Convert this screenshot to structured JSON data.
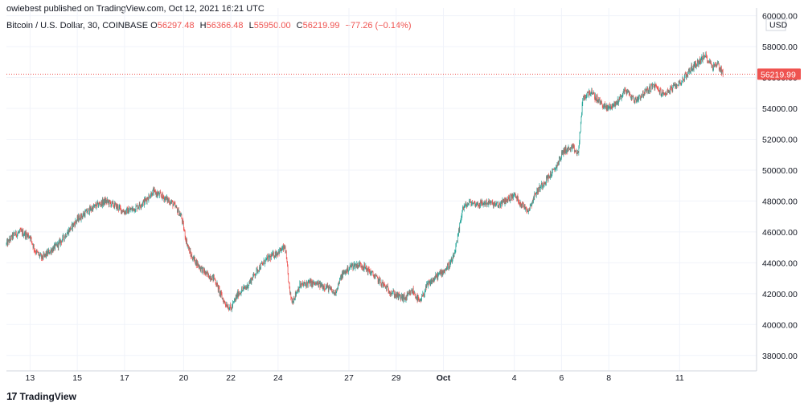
{
  "header": {
    "published": "owiebest published on TradingView.com, Oct 12, 2021 16:21 UTC"
  },
  "symbol": {
    "name": "Bitcoin / U.S. Dollar, 30, COINBASE",
    "open_label": "O",
    "open": "56297.48",
    "high_label": "H",
    "high": "56366.48",
    "low_label": "L",
    "low": "55950.00",
    "close_label": "C",
    "close": "56219.99",
    "change": "−77.26 (−0.14%)"
  },
  "brand": {
    "label": "TradingView",
    "icon": "tradingview-logo-icon"
  },
  "colors": {
    "up": "#26a69a",
    "down": "#ef5350",
    "grid": "#f0f3fa",
    "axis": "#d1d4dc"
  },
  "chart_data": {
    "type": "candlestick",
    "title": "Bitcoin / U.S. Dollar, 30, COINBASE",
    "currency": "USD",
    "last_price": "56219.99",
    "ylim": [
      37000,
      60500
    ],
    "y_ticks": [
      {
        "value": 38000,
        "label": "38000.00"
      },
      {
        "value": 40000,
        "label": "40000.00"
      },
      {
        "value": 42000,
        "label": "42000.00"
      },
      {
        "value": 44000,
        "label": "44000.00"
      },
      {
        "value": 46000,
        "label": "46000.00"
      },
      {
        "value": 48000,
        "label": "48000.00"
      },
      {
        "value": 50000,
        "label": "50000.00"
      },
      {
        "value": 52000,
        "label": "52000.00"
      },
      {
        "value": 54000,
        "label": "54000.00"
      },
      {
        "value": 56000,
        "label": "56000.00"
      },
      {
        "value": 58000,
        "label": "58000.00"
      },
      {
        "value": 60000,
        "label": "60000.00"
      }
    ],
    "x_range": [
      "Sep 11 22:00",
      "Oct 12 16:30"
    ],
    "x_ticks": [
      {
        "day": 1.0,
        "label": "13"
      },
      {
        "day": 3.0,
        "label": "15"
      },
      {
        "day": 5.0,
        "label": "17"
      },
      {
        "day": 7.5,
        "label": "20"
      },
      {
        "day": 9.5,
        "label": "22"
      },
      {
        "day": 11.5,
        "label": "24"
      },
      {
        "day": 14.5,
        "label": "27"
      },
      {
        "day": 16.5,
        "label": "29"
      },
      {
        "day": 18.5,
        "label": "Oct",
        "bold": true
      },
      {
        "day": 21.5,
        "label": "4"
      },
      {
        "day": 23.5,
        "label": "6"
      },
      {
        "day": 25.5,
        "label": "8"
      },
      {
        "day": 28.5,
        "label": "11"
      }
    ],
    "close_path": [
      [
        0.0,
        45200
      ],
      [
        0.3,
        45800
      ],
      [
        0.6,
        46000
      ],
      [
        1.0,
        45700
      ],
      [
        1.2,
        44800
      ],
      [
        1.5,
        44300
      ],
      [
        1.8,
        44700
      ],
      [
        2.2,
        45200
      ],
      [
        2.6,
        46000
      ],
      [
        3.0,
        46800
      ],
      [
        3.4,
        47300
      ],
      [
        3.8,
        47700
      ],
      [
        4.2,
        48000
      ],
      [
        4.6,
        47700
      ],
      [
        5.0,
        47300
      ],
      [
        5.4,
        47500
      ],
      [
        5.8,
        47900
      ],
      [
        6.2,
        48600
      ],
      [
        6.6,
        48300
      ],
      [
        7.0,
        47900
      ],
      [
        7.2,
        47500
      ],
      [
        7.4,
        47000
      ],
      [
        7.6,
        45500
      ],
      [
        7.8,
        44500
      ],
      [
        8.2,
        43700
      ],
      [
        8.5,
        43200
      ],
      [
        8.8,
        43000
      ],
      [
        9.0,
        42200
      ],
      [
        9.2,
        41500
      ],
      [
        9.5,
        41000
      ],
      [
        9.8,
        42000
      ],
      [
        10.2,
        42500
      ],
      [
        10.6,
        43500
      ],
      [
        11.0,
        44200
      ],
      [
        11.4,
        44600
      ],
      [
        11.8,
        45000
      ],
      [
        12.0,
        42000
      ],
      [
        12.1,
        41500
      ],
      [
        12.4,
        42500
      ],
      [
        12.8,
        42700
      ],
      [
        13.2,
        42600
      ],
      [
        13.6,
        42400
      ],
      [
        13.9,
        42000
      ],
      [
        14.2,
        43200
      ],
      [
        14.6,
        43800
      ],
      [
        15.0,
        43900
      ],
      [
        15.4,
        43400
      ],
      [
        15.8,
        42800
      ],
      [
        16.2,
        42200
      ],
      [
        16.6,
        41800
      ],
      [
        16.9,
        41700
      ],
      [
        17.2,
        42200
      ],
      [
        17.5,
        41400
      ],
      [
        17.8,
        42500
      ],
      [
        18.2,
        43100
      ],
      [
        18.6,
        43600
      ],
      [
        18.9,
        44200
      ],
      [
        19.1,
        45500
      ],
      [
        19.3,
        47500
      ],
      [
        19.6,
        47900
      ],
      [
        20.0,
        47800
      ],
      [
        20.4,
        47900
      ],
      [
        20.8,
        47700
      ],
      [
        21.2,
        48100
      ],
      [
        21.5,
        48400
      ],
      [
        21.8,
        47800
      ],
      [
        22.1,
        47400
      ],
      [
        22.4,
        48500
      ],
      [
        22.8,
        49300
      ],
      [
        23.2,
        50000
      ],
      [
        23.6,
        51300
      ],
      [
        24.0,
        51400
      ],
      [
        24.2,
        51000
      ],
      [
        24.4,
        54600
      ],
      [
        24.7,
        55100
      ],
      [
        25.0,
        54600
      ],
      [
        25.4,
        54000
      ],
      [
        25.8,
        54300
      ],
      [
        26.2,
        55200
      ],
      [
        26.6,
        54500
      ],
      [
        27.0,
        55000
      ],
      [
        27.4,
        55500
      ],
      [
        27.8,
        54900
      ],
      [
        28.2,
        55300
      ],
      [
        28.6,
        55800
      ],
      [
        29.0,
        56600
      ],
      [
        29.3,
        57000
      ],
      [
        29.6,
        57400
      ],
      [
        29.9,
        56700
      ],
      [
        30.1,
        56900
      ],
      [
        30.35,
        56219.99
      ]
    ]
  }
}
